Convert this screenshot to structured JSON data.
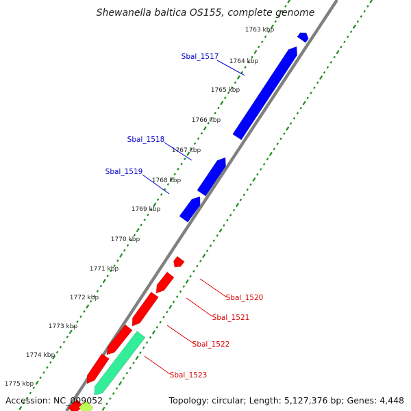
{
  "title": "Shewanella baltica OS155, complete genome",
  "accession": "Accession: NC_009052",
  "stats": "Topology: circular; Length: 5,127,376 bp; Genes: 4,448",
  "colors": {
    "forward_strand": "#0000ff",
    "reverse_strand": "#ff0000",
    "rna_feature": "#33ee99",
    "backbone": "#808080",
    "tick_marks": "#1a8c1a",
    "label_forward": "#0000cc",
    "label_reverse": "#dd0000"
  },
  "ruler": [
    {
      "label": "1763 kbp"
    },
    {
      "label": "1764 kbp"
    },
    {
      "label": "1765 kbp"
    },
    {
      "label": "1766 kbp"
    },
    {
      "label": "1767 kbp"
    },
    {
      "label": "1768 kbp"
    },
    {
      "label": "1769 kbp"
    },
    {
      "label": "1770 kbp"
    },
    {
      "label": "1771 kbp"
    },
    {
      "label": "1772 kbp"
    },
    {
      "label": "1773 kbp"
    },
    {
      "label": "1774 kbp"
    },
    {
      "label": "1775 kbp"
    }
  ],
  "gene_labels": [
    {
      "name": "Sbal_1517",
      "strand": "forward"
    },
    {
      "name": "Sbal_1518",
      "strand": "forward"
    },
    {
      "name": "Sbal_1519",
      "strand": "forward"
    },
    {
      "name": "Sbal_1520",
      "strand": "reverse"
    },
    {
      "name": "Sbal_1521",
      "strand": "reverse"
    },
    {
      "name": "Sbal_1522",
      "strand": "reverse"
    },
    {
      "name": "Sbal_1523",
      "strand": "reverse"
    }
  ]
}
